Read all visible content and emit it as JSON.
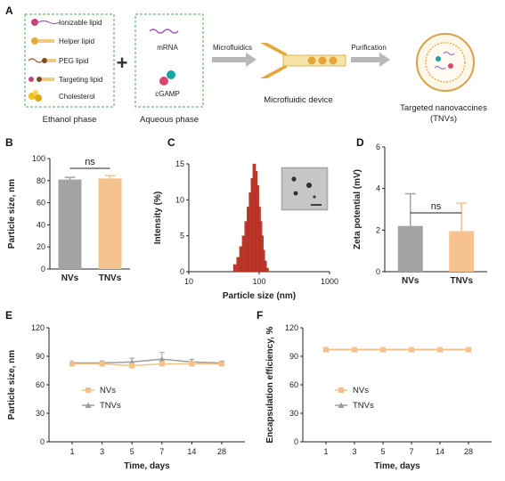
{
  "panel_a": {
    "letter": "A",
    "ethanol_items": [
      "Ionizable lipid",
      "Helper lipid",
      "PEG lipid",
      "Targeting lipid",
      "Cholesterol"
    ],
    "ethanol_caption": "Ethanol phase",
    "plus": "+",
    "aqueous_items": [
      "mRNA",
      "cGAMP"
    ],
    "aqueous_caption": "Aqueous phase",
    "step1": "Microfluidics",
    "device_caption": "Microfluidic device",
    "step2": "Purification",
    "product_caption_1": "Targeted nanovaccines",
    "product_caption_2": "(TNVs)"
  },
  "colors": {
    "nv": "#a3a3a5",
    "tnv": "#f6c28d",
    "hist": "#c0392b",
    "line_nv": "#f5c089",
    "line_tnv": "#9d9d9f"
  },
  "chart_data": [
    {
      "id": "B",
      "type": "bar",
      "categories": [
        "NVs",
        "TNVs"
      ],
      "values": [
        81,
        82
      ],
      "errors": [
        2,
        2.5
      ],
      "ylabel": "Particle size, nm",
      "ylim": [
        0,
        100
      ],
      "yticks": [
        0,
        20,
        40,
        60,
        80,
        100
      ],
      "annotation": "ns"
    },
    {
      "id": "C",
      "type": "bar",
      "xscale": "log",
      "x": [
        45,
        50,
        55,
        60,
        65,
        70,
        75,
        80,
        85,
        90,
        95,
        100,
        105,
        110,
        115,
        122,
        130
      ],
      "values": [
        1,
        2,
        3.5,
        5,
        7,
        9,
        11,
        13,
        15,
        14,
        12,
        9,
        7,
        5,
        3,
        1.5,
        0.5
      ],
      "xlabel": "Particle size (nm)",
      "ylabel": "Intensity (%)",
      "xlim": [
        10,
        1000
      ],
      "xticks": [
        10,
        100,
        1000
      ],
      "ylim": [
        0,
        15
      ],
      "yticks": [
        0,
        5,
        10,
        15
      ]
    },
    {
      "id": "D",
      "type": "bar",
      "categories": [
        "NVs",
        "TNVs"
      ],
      "values": [
        2.2,
        1.95
      ],
      "errors": [
        1.55,
        1.35
      ],
      "ylabel": "Zeta potential (mV)",
      "ylim": [
        0,
        6
      ],
      "yticks": [
        0,
        2,
        4,
        6
      ],
      "annotation": "ns"
    },
    {
      "id": "E",
      "type": "line",
      "categories": [
        "1",
        "3",
        "5",
        "7",
        "14",
        "28"
      ],
      "series": [
        {
          "name": "NVs",
          "values": [
            82,
            82,
            80,
            82,
            82,
            82
          ],
          "errors": [
            1.5,
            1.5,
            2,
            2.5,
            2,
            1.5
          ]
        },
        {
          "name": "TNVs",
          "values": [
            83,
            83,
            84,
            87,
            84,
            83
          ],
          "errors": [
            1.5,
            2,
            4,
            7,
            3,
            2
          ]
        }
      ],
      "xlabel": "Time, days",
      "ylabel": "Particle size, nm",
      "ylim": [
        0,
        120
      ],
      "yticks": [
        0,
        30,
        60,
        90,
        120
      ],
      "legend": "center-left"
    },
    {
      "id": "F",
      "type": "line",
      "categories": [
        "1",
        "3",
        "5",
        "7",
        "14",
        "28"
      ],
      "series": [
        {
          "name": "NVs",
          "values": [
            97,
            97,
            97,
            97,
            97,
            97
          ]
        },
        {
          "name": "TNVs",
          "values": [
            97,
            97,
            97,
            97,
            97,
            97
          ]
        }
      ],
      "xlabel": "Time, days",
      "ylabel": "Encapsulation efficiency, %",
      "ylim": [
        0,
        120
      ],
      "yticks": [
        0,
        30,
        60,
        90,
        120
      ],
      "legend": "center-left"
    }
  ]
}
